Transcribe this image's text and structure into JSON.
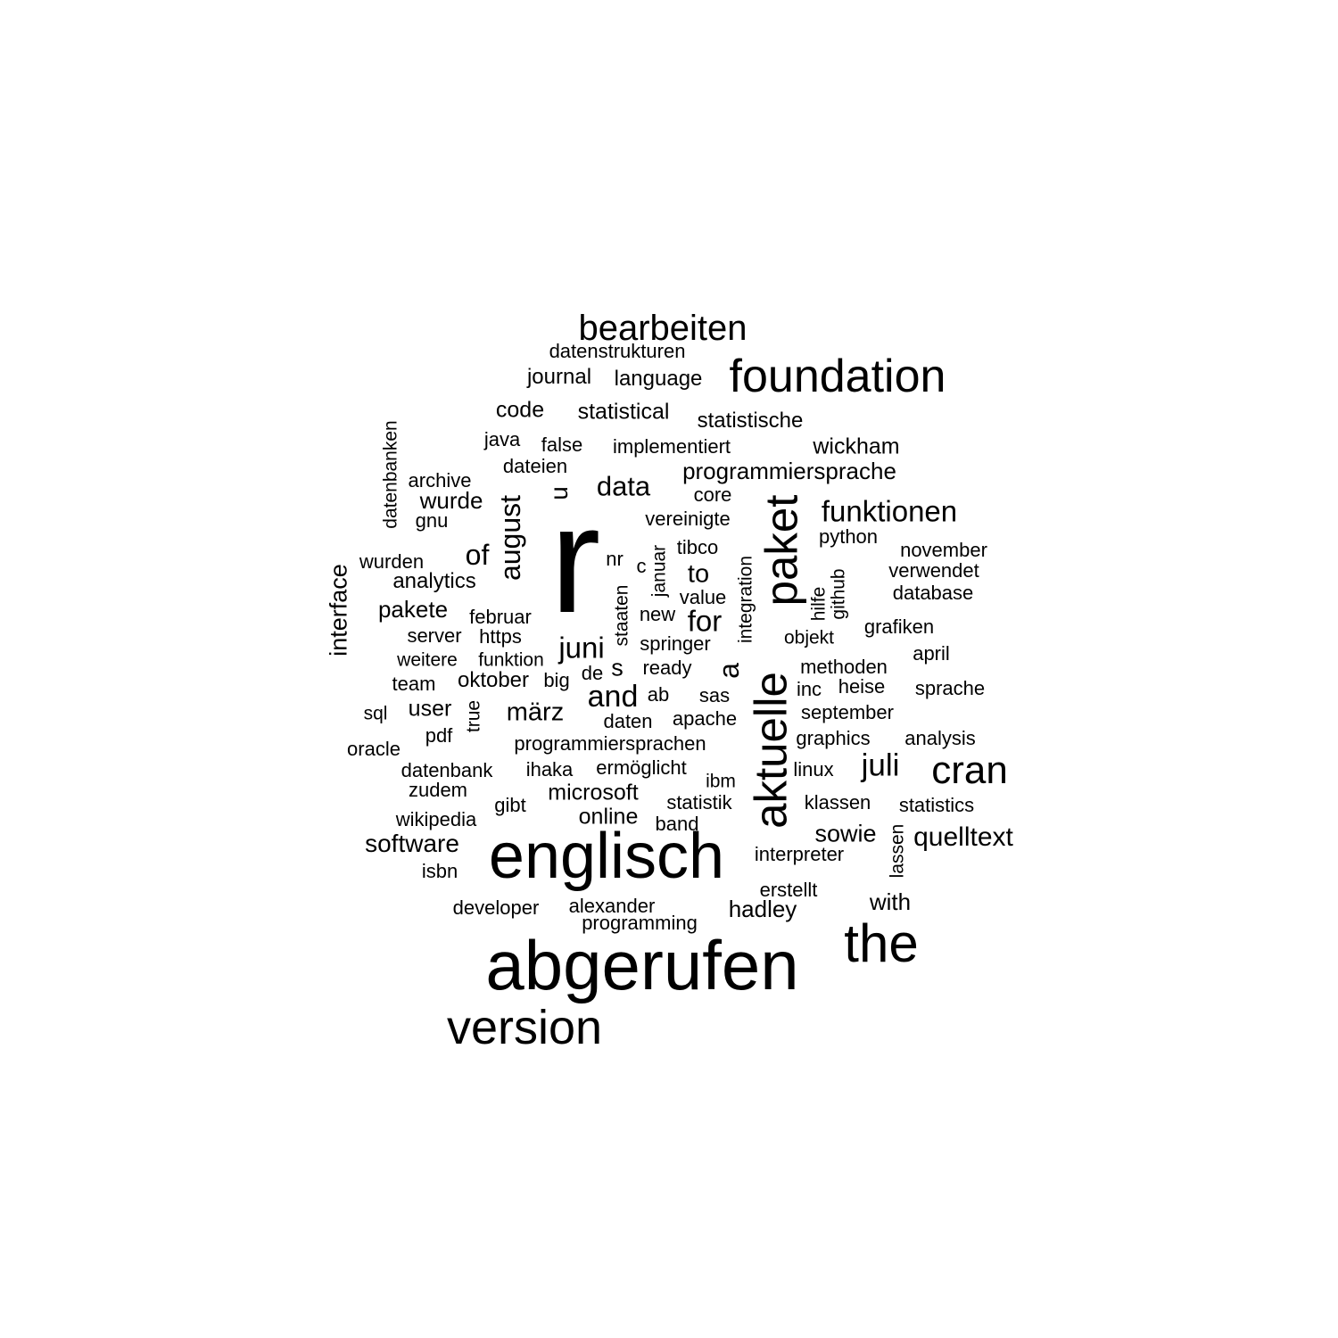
{
  "text_color": "#000000",
  "background_color": "#ffffff",
  "words": [
    {
      "text": "r",
      "weight": 1.0,
      "vertical": false
    },
    {
      "text": "abgerufen",
      "weight": 0.52,
      "vertical": false
    },
    {
      "text": "englisch",
      "weight": 0.48,
      "vertical": false
    },
    {
      "text": "aktuelle",
      "weight": 0.37,
      "vertical": true
    },
    {
      "text": "paket",
      "weight": 0.37,
      "vertical": true
    },
    {
      "text": "version",
      "weight": 0.38,
      "vertical": false
    },
    {
      "text": "the",
      "weight": 0.36,
      "vertical": false
    },
    {
      "text": "foundation",
      "weight": 0.33,
      "vertical": false
    },
    {
      "text": "cran",
      "weight": 0.29,
      "vertical": false
    },
    {
      "text": "bearbeiten",
      "weight": 0.27,
      "vertical": false
    },
    {
      "text": "august",
      "weight": 0.23,
      "vertical": true
    },
    {
      "text": "funktionen",
      "weight": 0.22,
      "vertical": false
    },
    {
      "text": "juni",
      "weight": 0.22,
      "vertical": false
    },
    {
      "text": "juli",
      "weight": 0.22,
      "vertical": false
    },
    {
      "text": "a",
      "weight": 0.22,
      "vertical": true
    },
    {
      "text": "and",
      "weight": 0.22,
      "vertical": false
    },
    {
      "text": "data",
      "weight": 0.2,
      "vertical": false
    },
    {
      "text": "for",
      "weight": 0.2,
      "vertical": false
    },
    {
      "text": "interface",
      "weight": 0.19,
      "vertical": true
    },
    {
      "text": "of",
      "weight": 0.2,
      "vertical": false
    },
    {
      "text": "märz",
      "weight": 0.19,
      "vertical": false
    },
    {
      "text": "quelltext",
      "weight": 0.19,
      "vertical": false
    },
    {
      "text": "software",
      "weight": 0.19,
      "vertical": false
    },
    {
      "text": "sowie",
      "weight": 0.18,
      "vertical": false
    },
    {
      "text": "to",
      "weight": 0.18,
      "vertical": false
    },
    {
      "text": "u",
      "weight": 0.18,
      "vertical": true
    },
    {
      "text": "programmiersprache",
      "weight": 0.17,
      "vertical": false
    },
    {
      "text": "pakete",
      "weight": 0.17,
      "vertical": false
    },
    {
      "text": "wurde",
      "weight": 0.17,
      "vertical": false
    },
    {
      "text": "microsoft",
      "weight": 0.16,
      "vertical": false
    },
    {
      "text": "user",
      "weight": 0.16,
      "vertical": false
    },
    {
      "text": "s",
      "weight": 0.16,
      "vertical": false
    },
    {
      "text": "wickham",
      "weight": 0.16,
      "vertical": false
    },
    {
      "text": "code",
      "weight": 0.16,
      "vertical": false
    },
    {
      "text": "statistical",
      "weight": 0.15,
      "vertical": false
    },
    {
      "text": "with",
      "weight": 0.16,
      "vertical": false
    },
    {
      "text": "hadley",
      "weight": 0.16,
      "vertical": false
    },
    {
      "text": "online",
      "weight": 0.15,
      "vertical": false
    },
    {
      "text": "journal",
      "weight": 0.15,
      "vertical": false
    },
    {
      "text": "language",
      "weight": 0.15,
      "vertical": false
    },
    {
      "text": "statistische",
      "weight": 0.15,
      "vertical": false
    },
    {
      "text": "analytics",
      "weight": 0.15,
      "vertical": false
    },
    {
      "text": "oktober",
      "weight": 0.15,
      "vertical": false
    },
    {
      "text": "datenstrukturen",
      "weight": 0.14,
      "vertical": false
    },
    {
      "text": "implementiert",
      "weight": 0.14,
      "vertical": false
    },
    {
      "text": "false",
      "weight": 0.14,
      "vertical": false
    },
    {
      "text": "java",
      "weight": 0.14,
      "vertical": false
    },
    {
      "text": "dateien",
      "weight": 0.14,
      "vertical": false
    },
    {
      "text": "archive",
      "weight": 0.14,
      "vertical": false
    },
    {
      "text": "core",
      "weight": 0.14,
      "vertical": false
    },
    {
      "text": "vereinigte",
      "weight": 0.14,
      "vertical": false
    },
    {
      "text": "gnu",
      "weight": 0.14,
      "vertical": false
    },
    {
      "text": "python",
      "weight": 0.14,
      "vertical": false
    },
    {
      "text": "november",
      "weight": 0.14,
      "vertical": false
    },
    {
      "text": "tibco",
      "weight": 0.14,
      "vertical": false
    },
    {
      "text": "wurden",
      "weight": 0.14,
      "vertical": false
    },
    {
      "text": "nr",
      "weight": 0.14,
      "vertical": false
    },
    {
      "text": "c",
      "weight": 0.14,
      "vertical": false
    },
    {
      "text": "verwendet",
      "weight": 0.14,
      "vertical": false
    },
    {
      "text": "database",
      "weight": 0.14,
      "vertical": false
    },
    {
      "text": "value",
      "weight": 0.14,
      "vertical": false
    },
    {
      "text": "februar",
      "weight": 0.14,
      "vertical": false
    },
    {
      "text": "new",
      "weight": 0.14,
      "vertical": false
    },
    {
      "text": "grafiken",
      "weight": 0.14,
      "vertical": false
    },
    {
      "text": "server",
      "weight": 0.14,
      "vertical": false
    },
    {
      "text": "https",
      "weight": 0.14,
      "vertical": false
    },
    {
      "text": "springer",
      "weight": 0.14,
      "vertical": false
    },
    {
      "text": "objekt",
      "weight": 0.13,
      "vertical": false
    },
    {
      "text": "weitere",
      "weight": 0.13,
      "vertical": false
    },
    {
      "text": "funktion",
      "weight": 0.13,
      "vertical": false
    },
    {
      "text": "ready",
      "weight": 0.14,
      "vertical": false
    },
    {
      "text": "methoden",
      "weight": 0.14,
      "vertical": false
    },
    {
      "text": "april",
      "weight": 0.14,
      "vertical": false
    },
    {
      "text": "de",
      "weight": 0.14,
      "vertical": false
    },
    {
      "text": "team",
      "weight": 0.14,
      "vertical": false
    },
    {
      "text": "big",
      "weight": 0.14,
      "vertical": false
    },
    {
      "text": "inc",
      "weight": 0.14,
      "vertical": false
    },
    {
      "text": "heise",
      "weight": 0.14,
      "vertical": false
    },
    {
      "text": "sprache",
      "weight": 0.14,
      "vertical": false
    },
    {
      "text": "ab",
      "weight": 0.14,
      "vertical": false
    },
    {
      "text": "sas",
      "weight": 0.14,
      "vertical": false
    },
    {
      "text": "sql",
      "weight": 0.13,
      "vertical": false
    },
    {
      "text": "daten",
      "weight": 0.14,
      "vertical": false
    },
    {
      "text": "apache",
      "weight": 0.14,
      "vertical": false
    },
    {
      "text": "september",
      "weight": 0.14,
      "vertical": false
    },
    {
      "text": "pdf",
      "weight": 0.14,
      "vertical": false
    },
    {
      "text": "graphics",
      "weight": 0.14,
      "vertical": false
    },
    {
      "text": "analysis",
      "weight": 0.14,
      "vertical": false
    },
    {
      "text": "oracle",
      "weight": 0.14,
      "vertical": false
    },
    {
      "text": "programmiersprachen",
      "weight": 0.14,
      "vertical": false
    },
    {
      "text": "datenbank",
      "weight": 0.14,
      "vertical": false
    },
    {
      "text": "ihaka",
      "weight": 0.14,
      "vertical": false
    },
    {
      "text": "ermöglicht",
      "weight": 0.14,
      "vertical": false
    },
    {
      "text": "linux",
      "weight": 0.14,
      "vertical": false
    },
    {
      "text": "ibm",
      "weight": 0.13,
      "vertical": false
    },
    {
      "text": "zudem",
      "weight": 0.14,
      "vertical": false
    },
    {
      "text": "gibt",
      "weight": 0.14,
      "vertical": false
    },
    {
      "text": "statistik",
      "weight": 0.14,
      "vertical": false
    },
    {
      "text": "klassen",
      "weight": 0.14,
      "vertical": false
    },
    {
      "text": "statistics",
      "weight": 0.14,
      "vertical": false
    },
    {
      "text": "wikipedia",
      "weight": 0.14,
      "vertical": false
    },
    {
      "text": "band",
      "weight": 0.14,
      "vertical": false
    },
    {
      "text": "interpreter",
      "weight": 0.14,
      "vertical": false
    },
    {
      "text": "isbn",
      "weight": 0.14,
      "vertical": false
    },
    {
      "text": "erstellt",
      "weight": 0.14,
      "vertical": false
    },
    {
      "text": "developer",
      "weight": 0.14,
      "vertical": false
    },
    {
      "text": "alexander",
      "weight": 0.14,
      "vertical": false
    },
    {
      "text": "programming",
      "weight": 0.14,
      "vertical": false
    },
    {
      "text": "datenbanken",
      "weight": 0.13,
      "vertical": true
    },
    {
      "text": "januar",
      "weight": 0.13,
      "vertical": true
    },
    {
      "text": "staaten",
      "weight": 0.13,
      "vertical": true
    },
    {
      "text": "integration",
      "weight": 0.13,
      "vertical": true
    },
    {
      "text": "hilfe",
      "weight": 0.13,
      "vertical": true
    },
    {
      "text": "github",
      "weight": 0.13,
      "vertical": true
    },
    {
      "text": "true",
      "weight": 0.13,
      "vertical": true
    },
    {
      "text": "lassen",
      "weight": 0.13,
      "vertical": true
    }
  ]
}
